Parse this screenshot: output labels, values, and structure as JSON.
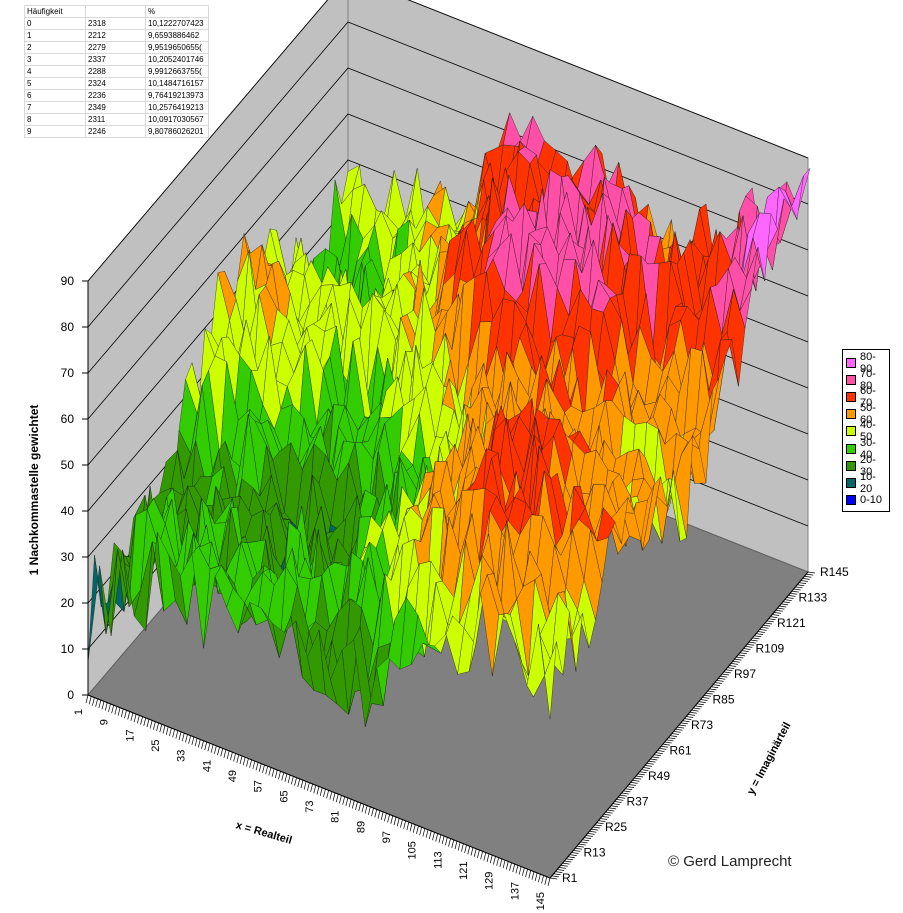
{
  "table": {
    "headers": [
      "Häufigkeit",
      "",
      "%"
    ],
    "rows": [
      [
        "0",
        "2318",
        "10,1222707423"
      ],
      [
        "1",
        "2212",
        "9,6593886462"
      ],
      [
        "2",
        "2279",
        "9,9519650655("
      ],
      [
        "3",
        "2337",
        "10,2052401746"
      ],
      [
        "4",
        "2288",
        "9,9912663755("
      ],
      [
        "5",
        "2324",
        "10,1484716157"
      ],
      [
        "6",
        "2236",
        "9,76419213973"
      ],
      [
        "7",
        "2349",
        "10,2576419213"
      ],
      [
        "8",
        "2311",
        "10,0917030567"
      ],
      [
        "9",
        "2246",
        "9,80786026201"
      ]
    ]
  },
  "legend": [
    {
      "label": "80-90",
      "color": "#ff66ff"
    },
    {
      "label": "70-80",
      "color": "#ff4fa6"
    },
    {
      "label": "60-70",
      "color": "#ff3300"
    },
    {
      "label": "50-60",
      "color": "#ff9900"
    },
    {
      "label": "40-50",
      "color": "#ccff00"
    },
    {
      "label": "30-40",
      "color": "#33cc00"
    },
    {
      "label": "20-30",
      "color": "#339900"
    },
    {
      "label": "10-20",
      "color": "#006666"
    },
    {
      "label": "0-10",
      "color": "#0000ff"
    }
  ],
  "copyright": "© Gerd Lamprecht",
  "chart_data": {
    "type": "surface",
    "zlabel": "1 Nachkommastelle gewichtet",
    "xlabel": "x = Realteil",
    "ylabel": "y = Imaginärteil",
    "zlim": [
      0,
      90
    ],
    "z_ticks": [
      "0",
      "10",
      "20",
      "30",
      "40",
      "50",
      "60",
      "70",
      "80",
      "90"
    ],
    "x_ticks": [
      "1",
      "9",
      "17",
      "25",
      "33",
      "41",
      "49",
      "57",
      "65",
      "73",
      "81",
      "89",
      "97",
      "105",
      "113",
      "121",
      "129",
      "137",
      "145"
    ],
    "y_ticks": [
      "R1",
      "R13",
      "R25",
      "R37",
      "R49",
      "R61",
      "R73",
      "R85",
      "R97",
      "R109",
      "R121",
      "R133",
      "R145"
    ],
    "grid": true,
    "legend_position": "right",
    "series_bands": [
      "0-10",
      "10-20",
      "20-30",
      "30-40",
      "40-50",
      "50-60",
      "60-70",
      "70-80",
      "80-90"
    ]
  }
}
